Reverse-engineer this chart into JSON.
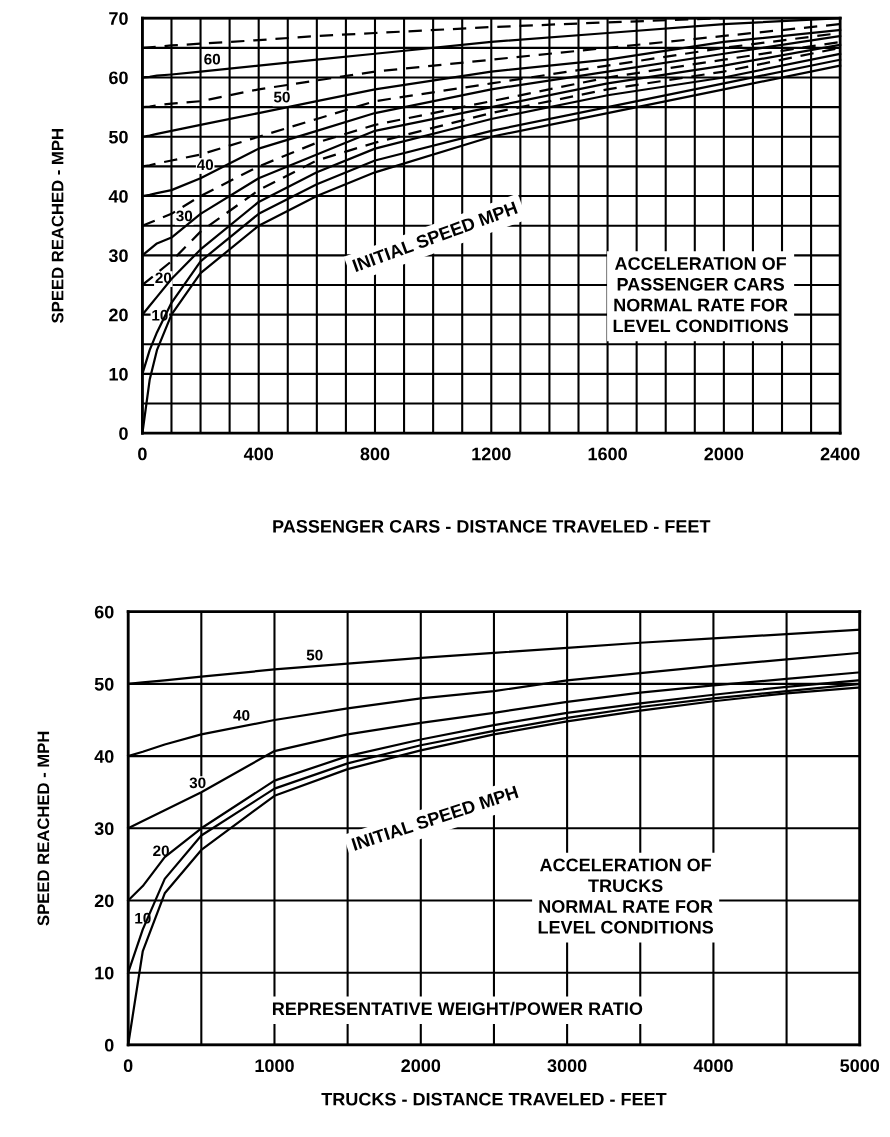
{
  "chart_data": [
    {
      "type": "line",
      "xlabel": "PASSENGER CARS - DISTANCE TRAVELED - FEET",
      "ylabel": "SPEED REACHED - MPH",
      "x": [
        0,
        25,
        50,
        100,
        200,
        400,
        600,
        800,
        1200,
        1600,
        2000,
        2400
      ],
      "xlim": [
        0,
        2400
      ],
      "ylim": [
        0,
        70
      ],
      "xticks": [
        0,
        {
          "value": 100,
          "label": null
        },
        {
          "value": 200,
          "label": null
        },
        {
          "value": 300,
          "label": null
        },
        400,
        {
          "value": 500,
          "label": null
        },
        {
          "value": 600,
          "label": null
        },
        {
          "value": 700,
          "label": null
        },
        800,
        {
          "value": 900,
          "label": null
        },
        {
          "value": 1000,
          "label": null
        },
        {
          "value": 1100,
          "label": null
        },
        1200,
        {
          "value": 1300,
          "label": null
        },
        {
          "value": 1400,
          "label": null
        },
        {
          "value": 1500,
          "label": null
        },
        1600,
        {
          "value": 1700,
          "label": null
        },
        {
          "value": 1800,
          "label": null
        },
        {
          "value": 1900,
          "label": null
        },
        2000,
        {
          "value": 2100,
          "label": null
        },
        {
          "value": 2200,
          "label": null
        },
        {
          "value": 2300,
          "label": null
        },
        2400
      ],
      "yticks": [
        0,
        {
          "value": 5,
          "label": null
        },
        10,
        {
          "value": 15,
          "label": null
        },
        20,
        {
          "value": 25,
          "label": null
        },
        30,
        {
          "value": 35,
          "label": null
        },
        40,
        {
          "value": 45,
          "label": null
        },
        50,
        {
          "value": 55,
          "label": null
        },
        60,
        {
          "value": 65,
          "label": null
        },
        70
      ],
      "grid": true,
      "line_style": "solid",
      "marker": "none",
      "series": [
        {
          "color": "#000000",
          "values": [
            0,
            9,
            14,
            20,
            27,
            35,
            40,
            44,
            50,
            54,
            58,
            62
          ]
        },
        {
          "name": "10",
          "color": "#000000",
          "values": [
            10,
            14,
            17,
            22,
            29,
            37,
            42,
            46,
            51,
            55,
            59,
            63
          ]
        },
        {
          "name": "20",
          "color": "#000000",
          "values": [
            20,
            21.5,
            23,
            26,
            31,
            39,
            44,
            48,
            53,
            57,
            60,
            64
          ]
        },
        {
          "color": "#000000",
          "line_style": "dashed",
          "values": [
            25,
            26,
            27,
            29,
            34,
            41,
            46,
            49,
            54,
            58,
            61,
            65
          ]
        },
        {
          "name": "30",
          "color": "#000000",
          "values": [
            30,
            31,
            32,
            33,
            37,
            43,
            47,
            51,
            55,
            59,
            62,
            65.5
          ]
        },
        {
          "color": "#000000",
          "line_style": "dashed",
          "values": [
            35,
            35.5,
            36,
            37,
            40,
            45,
            49,
            52,
            56,
            60,
            63,
            66
          ]
        },
        {
          "name": "40",
          "color": "#000000",
          "values": [
            40,
            40.2,
            40.5,
            41,
            43,
            48,
            51,
            54,
            58,
            61,
            64,
            67
          ]
        },
        {
          "color": "#000000",
          "line_style": "dashed",
          "values": [
            45,
            45.2,
            45.5,
            46,
            47,
            50,
            53,
            56,
            59,
            62,
            65,
            67.5
          ]
        },
        {
          "name": "50",
          "color": "#000000",
          "values": [
            50,
            50.2,
            50.5,
            51,
            52,
            54,
            56,
            58,
            61,
            63,
            66,
            68
          ]
        },
        {
          "color": "#000000",
          "line_style": "dashed",
          "values": [
            55,
            55.1,
            55.3,
            55.6,
            56,
            58,
            59.5,
            61,
            63,
            65,
            67,
            69
          ]
        },
        {
          "name": "60",
          "color": "#000000",
          "values": [
            60,
            60.1,
            60.3,
            60.5,
            61,
            62,
            63,
            64,
            66,
            67.5,
            69,
            70
          ]
        },
        {
          "color": "#000000",
          "line_style": "dashed",
          "values": [
            65,
            65.1,
            65.2,
            65.4,
            65.7,
            66.3,
            67,
            67.5,
            68.5,
            69.3,
            70,
            null
          ]
        }
      ],
      "annotations": [
        "INITIAL SPEED MPH",
        "ACCELERATION OF\nPASSENGER CARS\nNORMAL RATE FOR\nLEVEL CONDITIONS"
      ]
    },
    {
      "type": "line",
      "xlabel": "TRUCKS - DISTANCE TRAVELED - FEET",
      "ylabel": "SPEED REACHED - MPH",
      "x": [
        0,
        100,
        250,
        500,
        1000,
        1500,
        2000,
        2500,
        3000,
        3500,
        4000,
        4500,
        5000
      ],
      "xlim": [
        0,
        5000
      ],
      "ylim": [
        0,
        60
      ],
      "xticks": [
        0,
        {
          "value": 500,
          "label": null
        },
        1000,
        {
          "value": 1500,
          "label": null
        },
        2000,
        {
          "value": 2500,
          "label": null
        },
        3000,
        {
          "value": 3500,
          "label": null
        },
        4000,
        {
          "value": 4500,
          "label": null
        },
        5000
      ],
      "yticks": [
        0,
        10,
        20,
        30,
        40,
        50,
        60
      ],
      "grid": true,
      "line_style": "solid",
      "marker": "none",
      "series": [
        {
          "color": "#000000",
          "values": [
            0,
            13,
            21,
            27,
            34.5,
            38.2,
            40.8,
            43,
            44.8,
            46.3,
            47.6,
            48.7,
            49.5
          ]
        },
        {
          "name": "10",
          "color": "#000000",
          "values": [
            10,
            16,
            23,
            29,
            35.5,
            39,
            41.5,
            43.5,
            45.3,
            46.8,
            48,
            49,
            50
          ]
        },
        {
          "name": "20",
          "color": "#000000",
          "values": [
            20,
            22,
            26,
            30,
            36.6,
            40,
            42.3,
            44.3,
            46,
            47.3,
            48.5,
            49.6,
            50.5
          ]
        },
        {
          "name": "30",
          "color": "#000000",
          "values": [
            30,
            31,
            32.5,
            35,
            40.7,
            43,
            44.6,
            46,
            47.5,
            48.8,
            49.8,
            50.7,
            51.6
          ]
        },
        {
          "name": "40",
          "color": "#000000",
          "values": [
            40,
            40.6,
            41.6,
            43,
            45,
            46.6,
            48,
            49,
            50.5,
            51.5,
            52.5,
            53.4,
            54.3
          ]
        },
        {
          "name": "50",
          "color": "#000000",
          "values": [
            50,
            50.2,
            50.5,
            51,
            52,
            52.8,
            53.6,
            54.3,
            55,
            55.7,
            56.3,
            56.9,
            57.5
          ]
        }
      ],
      "annotations": [
        "INITIAL SPEED MPH",
        "ACCELERATION OF\nTRUCKS\nNORMAL RATE FOR\nLEVEL CONDITIONS",
        "REPRESENTATIVE WEIGHT/POWER RATIO"
      ]
    }
  ]
}
